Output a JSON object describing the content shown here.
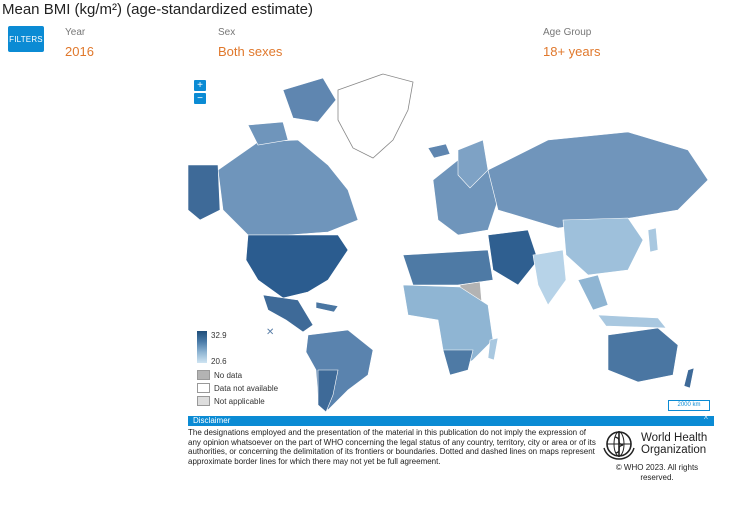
{
  "title": "Mean BMI (kg/m²) (age-standardized estimate)",
  "filters_button": "FILTERS",
  "filters": {
    "year": {
      "label": "Year",
      "value": "2016"
    },
    "sex": {
      "label": "Sex",
      "value": "Both sexes"
    },
    "age_group": {
      "label": "Age Group",
      "value": "18+ years"
    }
  },
  "zoom": {
    "in": "+",
    "out": "−"
  },
  "legend": {
    "max": "32.9",
    "min": "20.6",
    "items": [
      {
        "label": "No data",
        "color": "#b3b3b3"
      },
      {
        "label": "Data not available",
        "color": "#ffffff"
      },
      {
        "label": "Not applicable",
        "color": "#dddddd"
      }
    ]
  },
  "scale_bar": "2000 km",
  "disclaimer": {
    "heading": "Disclaimer",
    "text": "The designations employed and the presentation of the material in this publication do not imply the expression of any opinion whatsoever on the part of WHO concerning the legal status of any country, territory, city or area or of its authorities, or concerning the delimitation of its frontiers or boundaries. Dotted and dashed lines on maps represent approximate border lines for which there may not yet be full agreement."
  },
  "who": {
    "name_line1": "World Health",
    "name_line2": "Organization",
    "copyright": "© WHO 2023. All rights reserved."
  },
  "colors": {
    "accent": "#0b8bd4",
    "value_text": "#e0782c",
    "scale_dark": "#1f4e79",
    "scale_light": "#cfe4f2"
  }
}
